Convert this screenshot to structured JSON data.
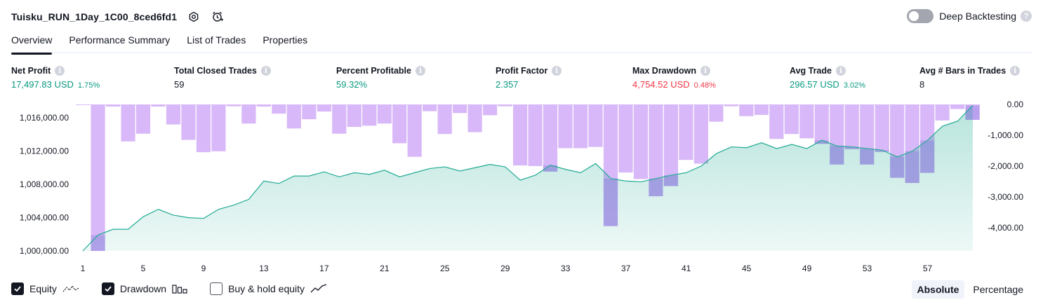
{
  "header": {
    "title": "Tuisku_RUN_1Day_1C00_8ced6fd1",
    "deep_backtesting_label": "Deep Backtesting",
    "help_glyph": "?"
  },
  "tabs": [
    {
      "label": "Overview",
      "active": true
    },
    {
      "label": "Performance Summary",
      "active": false
    },
    {
      "label": "List of Trades",
      "active": false
    },
    {
      "label": "Properties",
      "active": false
    }
  ],
  "metrics": [
    {
      "label": "Net Profit",
      "value": "17,497.83 USD",
      "pct": "1.75%",
      "tone": "green"
    },
    {
      "label": "Total Closed Trades",
      "value": "59",
      "pct": "",
      "tone": "dark"
    },
    {
      "label": "Percent Profitable",
      "value": "59.32%",
      "pct": "",
      "tone": "green"
    },
    {
      "label": "Profit Factor",
      "value": "2.357",
      "pct": "",
      "tone": "green"
    },
    {
      "label": "Max Drawdown",
      "value": "4,754.52 USD",
      "pct": "0.48%",
      "tone": "red"
    },
    {
      "label": "Avg Trade",
      "value": "296.57 USD",
      "pct": "3.02%",
      "tone": "green"
    },
    {
      "label": "Avg # Bars in Trades",
      "value": "8",
      "pct": "",
      "tone": "dark"
    }
  ],
  "info_glyph": "i",
  "chart_data": {
    "type": "line",
    "colors": {
      "equity_line": "#22ab94",
      "equity_fill": "#22ab94",
      "drawdown_bar": "#d8b8f8",
      "drawdown_overlap": "#b4b0ea"
    },
    "x_ticks": [
      "1",
      "5",
      "9",
      "13",
      "17",
      "21",
      "25",
      "29",
      "33",
      "37",
      "41",
      "45",
      "49",
      "53",
      "57"
    ],
    "x_range": [
      1,
      60
    ],
    "left_axis": {
      "ticks": [
        "1,016,000.00",
        "1,012,000.00",
        "1,008,000.00",
        "1,004,000.00",
        "1,000,000.00"
      ],
      "range": [
        1000000,
        1017600
      ]
    },
    "right_axis": {
      "ticks": [
        "0.00",
        "-1,000.00",
        "-2,000.00",
        "-3,000.00",
        "-4,000.00"
      ],
      "range": [
        -4754.52,
        0
      ]
    },
    "series": [
      {
        "name": "Equity",
        "x": [
          1,
          2,
          3,
          4,
          5,
          6,
          7,
          8,
          9,
          10,
          11,
          12,
          13,
          14,
          15,
          16,
          17,
          18,
          19,
          20,
          21,
          22,
          23,
          24,
          25,
          26,
          27,
          28,
          29,
          30,
          31,
          32,
          33,
          34,
          35,
          36,
          37,
          38,
          39,
          40,
          41,
          42,
          43,
          44,
          45,
          46,
          47,
          48,
          49,
          50,
          51,
          52,
          53,
          54,
          55,
          56,
          57,
          58,
          59,
          60
        ],
        "values": [
          1000000,
          1001900,
          1002600,
          1002600,
          1004100,
          1005000,
          1004300,
          1004000,
          1003900,
          1005000,
          1005500,
          1006200,
          1008400,
          1008100,
          1009000,
          1009000,
          1009500,
          1008900,
          1009400,
          1009200,
          1009700,
          1008900,
          1009400,
          1009900,
          1010100,
          1009600,
          1010000,
          1010400,
          1010100,
          1008500,
          1009100,
          1010300,
          1009800,
          1009400,
          1010500,
          1008700,
          1008400,
          1008300,
          1008700,
          1009100,
          1009400,
          1010200,
          1011700,
          1012500,
          1012400,
          1013000,
          1012300,
          1012800,
          1012300,
          1013300,
          1012600,
          1012500,
          1012300,
          1012100,
          1011300,
          1012000,
          1013300,
          1015000,
          1015600,
          1017500
        ]
      },
      {
        "name": "Drawdown",
        "x": [
          1,
          2,
          3,
          4,
          5,
          6,
          7,
          8,
          9,
          10,
          11,
          12,
          13,
          14,
          15,
          16,
          17,
          18,
          19,
          20,
          21,
          22,
          23,
          24,
          25,
          26,
          27,
          28,
          29,
          30,
          31,
          32,
          33,
          34,
          35,
          36,
          37,
          38,
          39,
          40,
          41,
          42,
          43,
          44,
          45,
          46,
          47,
          48,
          49,
          50,
          51,
          52,
          53,
          54,
          55,
          56,
          57,
          58,
          59,
          60
        ],
        "values": [
          0,
          -4754.52,
          -70,
          -1200,
          -950,
          -70,
          -650,
          -1150,
          -1550,
          -1520,
          -60,
          -620,
          -70,
          -300,
          -780,
          -480,
          -230,
          -950,
          -730,
          -690,
          -620,
          -1260,
          -1700,
          -220,
          -960,
          -280,
          -900,
          -350,
          -60,
          -1980,
          -2000,
          -2180,
          -1420,
          -1420,
          -1380,
          -3950,
          -2210,
          -2420,
          -2980,
          -2650,
          -1800,
          -1920,
          -560,
          -60,
          -380,
          -340,
          -1120,
          -960,
          -1100,
          -1280,
          -1950,
          -1450,
          -1950,
          -1540,
          -2380,
          -2550,
          -2220,
          -520,
          -150,
          -500
        ]
      }
    ],
    "legend_placement": "bottom-left"
  },
  "legend": {
    "equity_label": "Equity",
    "drawdown_label": "Drawdown",
    "buyhold_label": "Buy & hold equity"
  },
  "modes": {
    "absolute_label": "Absolute",
    "percentage_label": "Percentage",
    "active": "Absolute"
  }
}
